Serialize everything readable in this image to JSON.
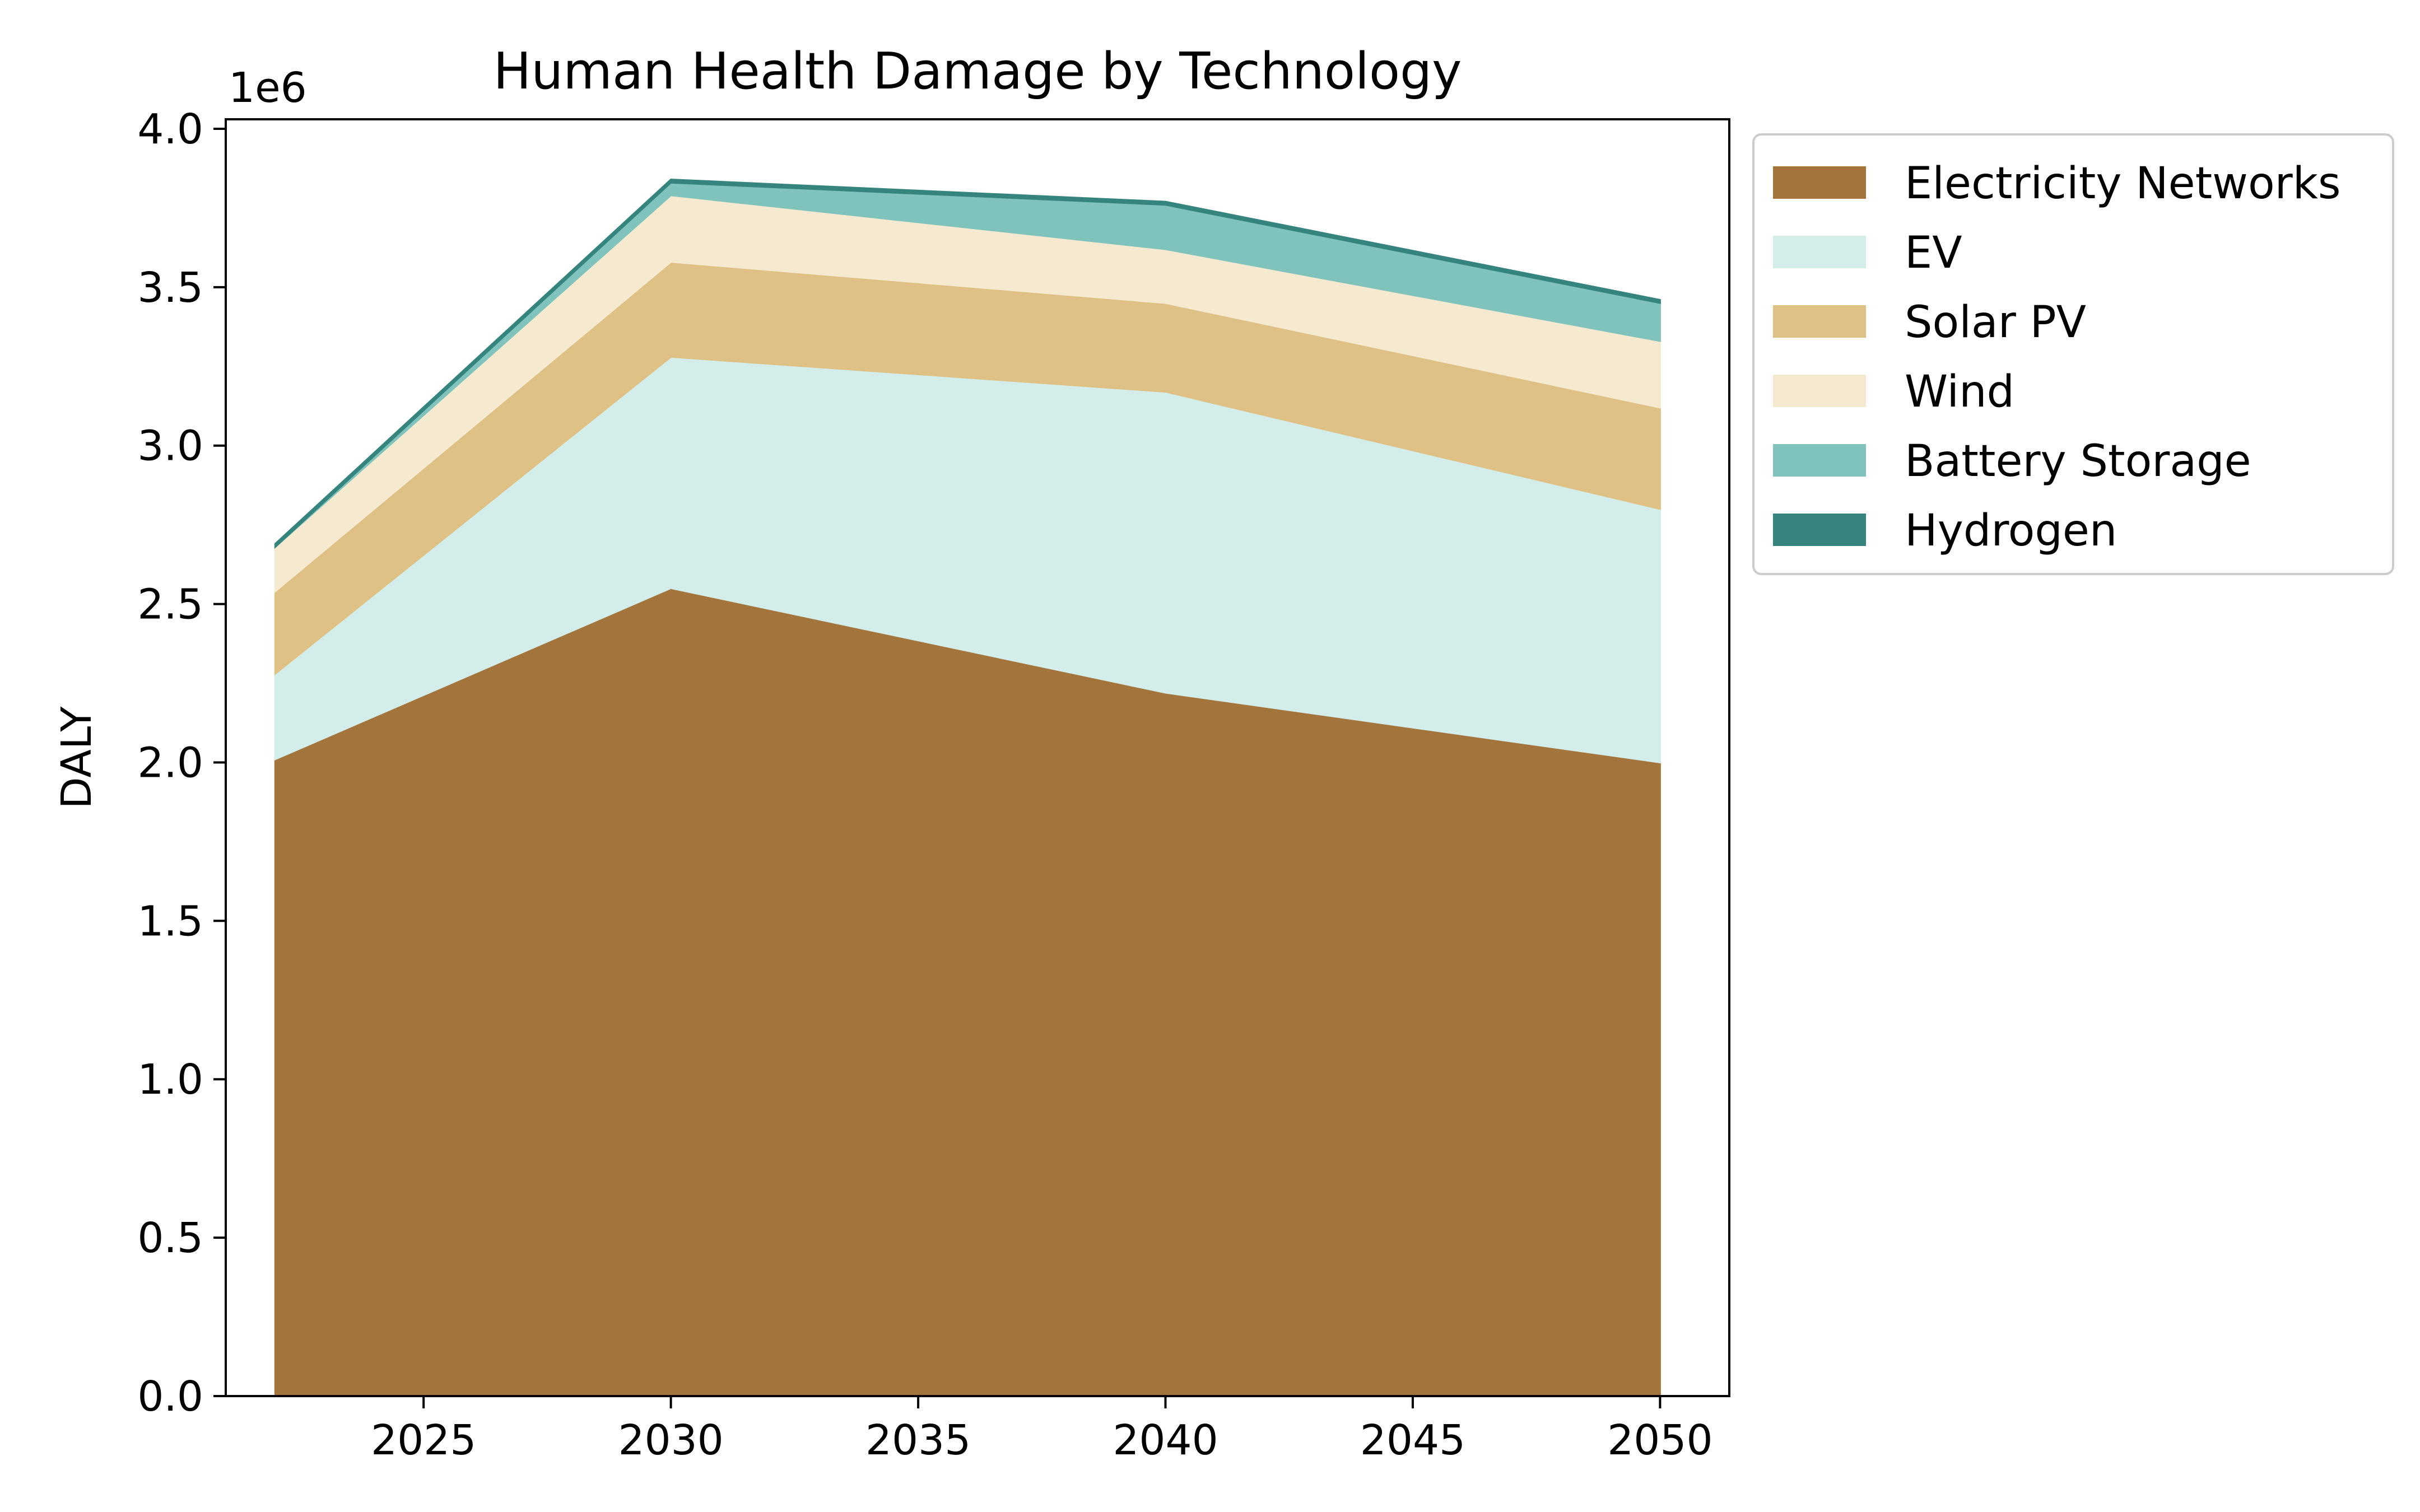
{
  "chart_data": {
    "type": "area",
    "stacked": true,
    "title": "Human Health Damage by Technology",
    "xlabel": "",
    "ylabel": "DALY",
    "y_offset_label": "1e6",
    "x": [
      2022,
      2030,
      2040,
      2050
    ],
    "xlim": [
      2021,
      2051.4
    ],
    "ylim": [
      0,
      4.03
    ],
    "y_scale": 1000000,
    "xticks": [
      2025,
      2030,
      2035,
      2040,
      2045,
      2050
    ],
    "yticks": [
      0.0,
      0.5,
      1.0,
      1.5,
      2.0,
      2.5,
      3.0,
      3.5,
      4.0
    ],
    "ytick_labels": [
      "0.0",
      "0.5",
      "1.0",
      "1.5",
      "2.0",
      "2.5",
      "3.0",
      "3.5",
      "4.0"
    ],
    "grid": false,
    "legend_position": "outside-right",
    "series": [
      {
        "name": "Electricity Networks",
        "color": "#a3753c",
        "values": [
          2.01,
          2.55,
          2.22,
          2.0
        ]
      },
      {
        "name": "EV",
        "color": "#d3eeea",
        "values": [
          0.27,
          0.73,
          0.95,
          0.8
        ]
      },
      {
        "name": "Solar PV",
        "color": "#dfc185",
        "values": [
          0.26,
          0.3,
          0.28,
          0.32
        ]
      },
      {
        "name": "Wind",
        "color": "#f5ead0",
        "values": [
          0.14,
          0.21,
          0.17,
          0.21
        ]
      },
      {
        "name": "Battery Storage",
        "color": "#7fc3bc",
        "values": [
          0.0,
          0.04,
          0.14,
          0.12
        ]
      },
      {
        "name": "Hydrogen",
        "color": "#35857e",
        "values": [
          0.01,
          0.01,
          0.01,
          0.01
        ]
      }
    ]
  }
}
